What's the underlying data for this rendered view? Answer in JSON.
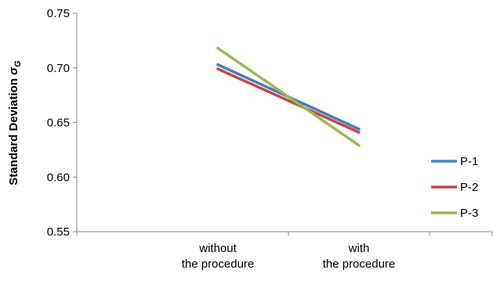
{
  "chart_data": {
    "type": "line",
    "title": "",
    "xlabel": "",
    "ylabel": "Standard Deviation ",
    "ylabel_symbol": "σ",
    "ylabel_subscript": "G",
    "categories": [
      [
        "without",
        "the procedure"
      ],
      [
        "with",
        "the procedure"
      ]
    ],
    "ylim": [
      0.55,
      0.75
    ],
    "yticks": [
      "0.55",
      "0.60",
      "0.65",
      "0.70",
      "0.75"
    ],
    "grid": false,
    "legend_position": "right",
    "series": [
      {
        "name": "P-1",
        "color": "#4a7ebb",
        "values": [
          0.703,
          0.644
        ]
      },
      {
        "name": "P-2",
        "color": "#be4b48",
        "values": [
          0.699,
          0.641
        ]
      },
      {
        "name": "P-3",
        "color": "#98b954",
        "values": [
          0.718,
          0.629
        ]
      }
    ]
  }
}
